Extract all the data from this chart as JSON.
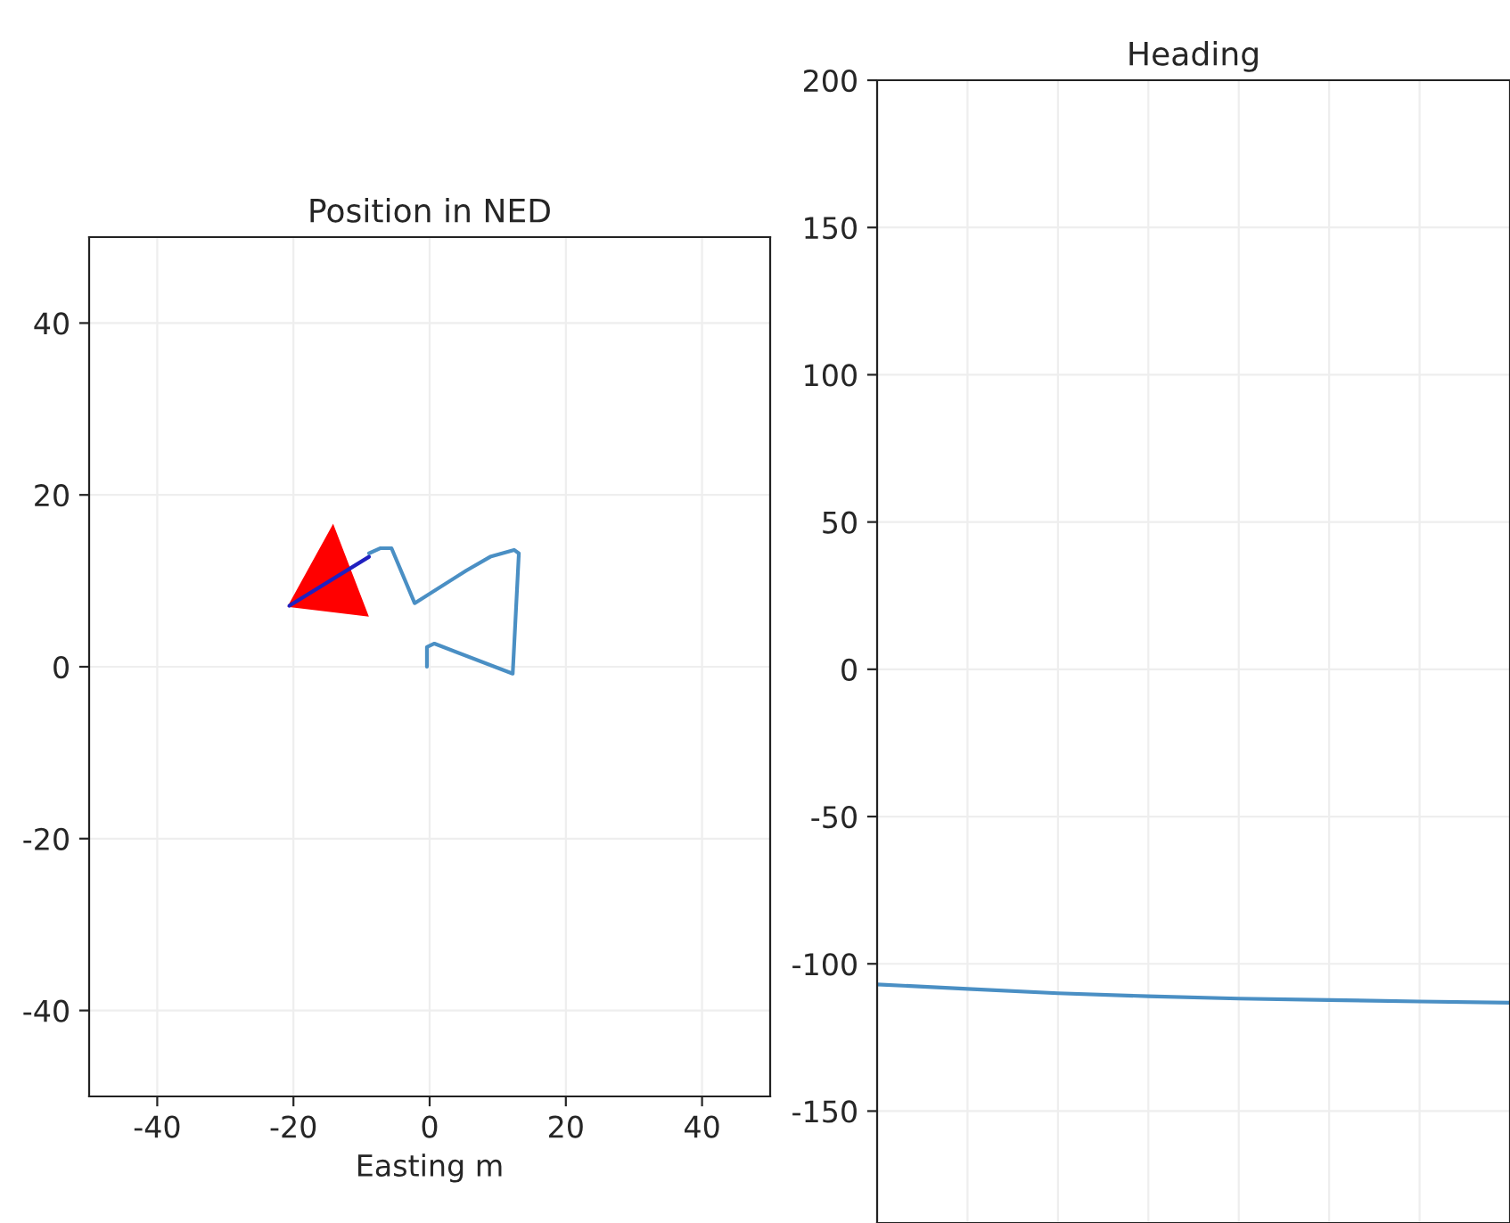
{
  "chart_data": [
    {
      "type": "line",
      "title": "Position in NED",
      "xlabel": "Easting m",
      "xlim": [
        -50,
        50
      ],
      "ylim": [
        -50,
        50
      ],
      "xticks": [
        -40,
        -20,
        0,
        20,
        40
      ],
      "yticks": [
        40,
        20,
        0,
        -20,
        -40
      ],
      "grid": true,
      "series": [
        {
          "color": "#4a8fc4",
          "x": [
            -0.4,
            -0.4,
            0.7,
            12.2,
            13.1,
            12.4,
            8.9,
            5.4,
            -2.2,
            -5.6,
            -7.2,
            -8.9
          ],
          "values": [
            0,
            2.3,
            2.7,
            -0.8,
            13.2,
            13.6,
            12.8,
            11.2,
            7.4,
            13.8,
            13.8,
            13.2
          ]
        },
        {
          "color": "#2020c0",
          "x": [
            -8.9,
            -20.6
          ],
          "values": [
            12.8,
            7.1
          ]
        }
      ]
    },
    {
      "type": "line",
      "title": "Heading",
      "ylim": [
        -188,
        200
      ],
      "yticks": [
        200,
        150,
        100,
        50,
        0,
        -50,
        -100,
        -150
      ],
      "tick_labels": "y",
      "grid": true,
      "categories": [
        null,
        null,
        null,
        null,
        null,
        null,
        null,
        null
      ],
      "series": [
        {
          "color": "#4a8fc4",
          "values": [
            -107,
            -108.5,
            -110,
            -111,
            -111.8,
            -112.3,
            -112.8,
            -113.2
          ]
        }
      ]
    }
  ]
}
